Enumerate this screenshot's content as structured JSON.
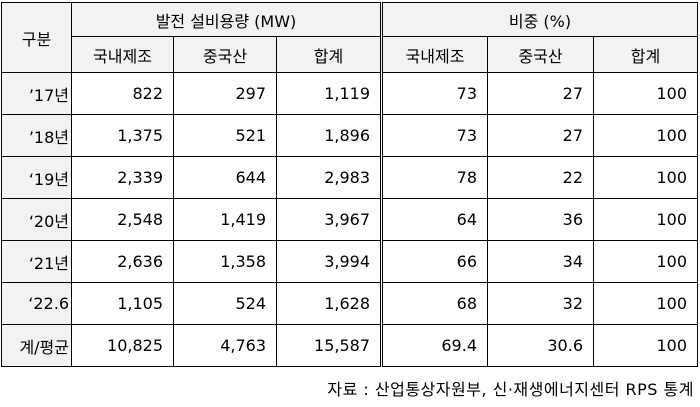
{
  "header": {
    "row_label": "구분",
    "group1": "발전 설비용량 (MW)",
    "group2": "비중 (%)",
    "columns": [
      "국내제조",
      "중국산",
      "합계",
      "국내제조",
      "중국산",
      "합계"
    ]
  },
  "rows": [
    [
      "’17년",
      "822",
      "297",
      "1,119",
      "73",
      "27",
      "100"
    ],
    [
      "’18년",
      "1,375",
      "521",
      "1,896",
      "73",
      "27",
      "100"
    ],
    [
      "‘19년",
      "2,339",
      "644",
      "2,983",
      "78",
      "22",
      "100"
    ],
    [
      "‘20년",
      "2,548",
      "1,419",
      "3,967",
      "64",
      "36",
      "100"
    ],
    [
      "‘21년",
      "2,636",
      "1,358",
      "3,994",
      "66",
      "34",
      "100"
    ],
    [
      "‘22.6",
      "1,105",
      "524",
      "1,628",
      "68",
      "32",
      "100"
    ],
    [
      "계/평균",
      "10,825",
      "4,763",
      "15,587",
      "69.4",
      "30.6",
      "100"
    ]
  ],
  "source": "자료 : 산업통상자원부, 신·재생에너지센터 RPS 통계"
}
